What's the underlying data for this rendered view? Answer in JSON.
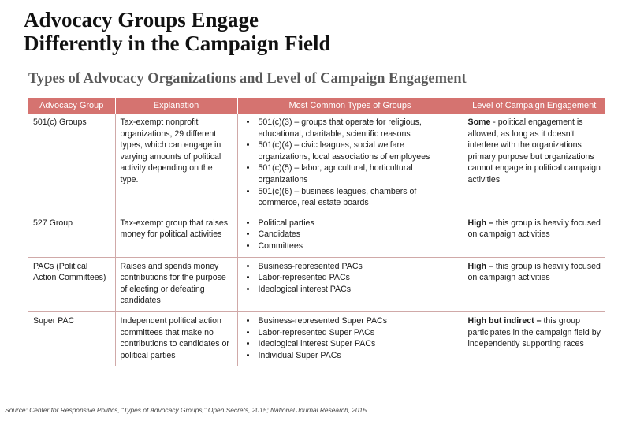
{
  "title": {
    "line1": "Advocacy Groups Engage",
    "line2": "Differently in the Campaign Field"
  },
  "subtitle": "Types of Advocacy Organizations and Level of Campaign Engagement",
  "table": {
    "headers": [
      "Advocacy Group",
      "Explanation",
      "Most Common Types of Groups",
      "Level of Campaign Engagement"
    ],
    "rows": [
      {
        "group": "501(c) Groups",
        "explanation": "Tax-exempt nonprofit organizations, 29 different types, which can engage in varying amounts of political activity depending on the type.",
        "types": [
          "501(c)(3) – groups that operate for religious, educational, charitable, scientific reasons",
          "501(c)(4) – civic leagues, social welfare organizations, local associations of employees",
          "501(c)(5) – labor, agricultural, horticultural organizations",
          "501(c)(6) – business leagues, chambers of commerce, real estate boards"
        ],
        "level_bold": "Some",
        "level_text": " - political engagement is allowed, as long as it doesn't interfere with the organizations primary purpose but organizations cannot engage in political campaign activities"
      },
      {
        "group": "527 Group",
        "explanation": "Tax-exempt group that raises money for political activities",
        "types": [
          "Political parties",
          "Candidates",
          "Committees"
        ],
        "level_bold": "High –",
        "level_text": " this group is heavily focused on campaign activities"
      },
      {
        "group": "PACs (Political Action Committees)",
        "explanation": "Raises and spends money contributions for the purpose of electing or defeating candidates",
        "types": [
          "Business-represented PACs",
          "Labor-represented PACs",
          "Ideological interest PACs"
        ],
        "level_bold": "High –",
        "level_text": " this group is heavily focused on campaign activities"
      },
      {
        "group": "Super PAC",
        "explanation": "Independent political action committees that make no contributions to candidates or political parties",
        "types": [
          "Business-represented Super PACs",
          "Labor-represented Super PACs",
          "Ideological interest Super PACs",
          "Individual Super PACs"
        ],
        "level_bold": "High but indirect –",
        "level_text": " this group participates in the campaign field by independently supporting races"
      }
    ]
  },
  "source": "Source: Center for Responsive Politics, “Types of Advocacy Groups,” Open Secrets, 2015; National Journal Research, 2015.",
  "colors": {
    "header_bg": "#d57370",
    "rule": "#d0a9a8",
    "subtitle": "#595959"
  }
}
